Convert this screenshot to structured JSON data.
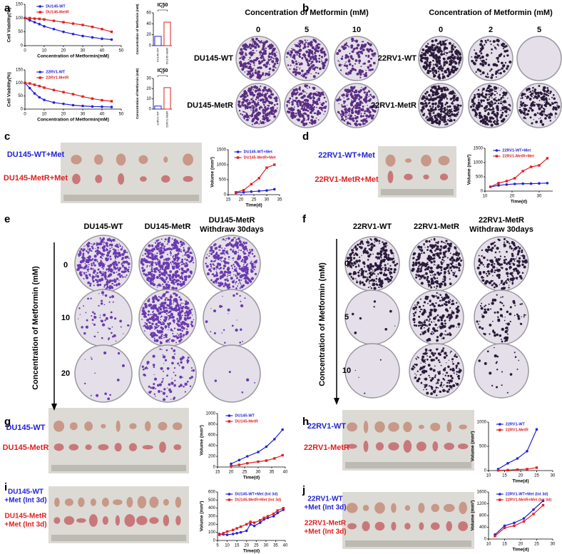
{
  "panels": {
    "letters": [
      "a",
      "b",
      "c",
      "d",
      "e",
      "f",
      "g",
      "h",
      "i",
      "j"
    ],
    "b": {
      "left_title": "Concentration of Metformin (mM)",
      "left_doses": [
        "0",
        "5",
        "10"
      ],
      "right_title": "Concentration of Metformin (mM)",
      "right_doses": [
        "0",
        "2",
        "5"
      ],
      "rows": [
        "DU145-WT",
        "DU145-MetR",
        "22RV1-WT",
        "22RV1-MetR"
      ]
    },
    "c": {
      "rows": [
        "DU145-WT+Met",
        "DU145-MetR+Met"
      ]
    },
    "d": {
      "rows": [
        "22RV1-WT+Met",
        "22RV1-MetR+Met"
      ]
    },
    "e": {
      "columns": [
        "DU145-WT",
        "DU145-MetR"
      ],
      "column3": [
        "DU145-MetR",
        "Withdraw 30days"
      ],
      "y_label": "Concentration of Metformin (mM)",
      "doses": [
        "0",
        "10",
        "20"
      ]
    },
    "f": {
      "columns": [
        "22RV1-WT",
        "22RV1-MetR"
      ],
      "column3": [
        "22RV1-MetR",
        "Withdraw 30days"
      ],
      "y_label": "Concentration of Metformin (mM)",
      "doses": [
        "0",
        "5",
        "10"
      ]
    },
    "g": {
      "rows": [
        "DU145-WT",
        "DU145-MetR"
      ]
    },
    "h": {
      "rows": [
        "22RV1-WT",
        "22RV1-MetR"
      ]
    },
    "i": {
      "rows": [
        "DU145-WT",
        "+Met (Int 3d)",
        "DU145-MetR",
        "+Met (Int 3d)"
      ]
    },
    "j": {
      "rows": [
        "22RV1-WT",
        "+Met (Int 3d)",
        "22RV1-MetR",
        "+Met (Int 3d)"
      ]
    }
  },
  "charts": [
    {
      "type": "line",
      "xlabel": "Concentration of Metformin(mM)",
      "ylabel": "Cell Viability(%)",
      "x": [
        0,
        2.5,
        5,
        7.5,
        10,
        15,
        20,
        25,
        30,
        35,
        40,
        45
      ],
      "xlim": [
        0,
        50
      ],
      "xticks": [
        0,
        10,
        20,
        30,
        40,
        50
      ],
      "ylim": [
        0,
        150
      ],
      "yticks": [
        0,
        50,
        100,
        150
      ],
      "series": [
        {
          "name": "DU145-WT",
          "color": "#2323d6",
          "values": [
            100,
            92,
            85,
            78,
            70,
            60,
            50,
            42,
            35,
            30,
            25,
            22
          ]
        },
        {
          "name": "DU145-MetR",
          "color": "#e02020",
          "values": [
            100,
            100,
            98,
            97,
            95,
            90,
            85,
            80,
            75,
            68,
            60,
            50
          ]
        }
      ]
    },
    {
      "type": "bar",
      "title": "IC50",
      "ylabel": "Concentration of Metformin (mM)",
      "categories": [
        "DU145-WT",
        "DU145-MetR"
      ],
      "values": [
        17,
        43
      ],
      "colors": [
        "#2323d6",
        "#e02020"
      ],
      "ylim": [
        0,
        60
      ],
      "yticks": [
        0,
        20,
        40,
        60
      ],
      "significance": "**"
    },
    {
      "type": "line",
      "xlabel": "Concentration of Metformin(mM)",
      "ylabel": "Cell Viability(%)",
      "x": [
        0,
        2.5,
        5,
        7.5,
        10,
        15,
        20,
        25,
        30,
        35,
        40,
        45
      ],
      "xlim": [
        0,
        50
      ],
      "xticks": [
        0,
        10,
        20,
        30,
        40,
        50
      ],
      "ylim": [
        0,
        150
      ],
      "yticks": [
        0,
        50,
        100,
        150
      ],
      "series": [
        {
          "name": "22RV1-WT",
          "color": "#2323d6",
          "values": [
            100,
            80,
            60,
            45,
            35,
            25,
            20,
            15,
            12,
            10,
            9,
            8
          ]
        },
        {
          "name": "22RV1-MetR",
          "color": "#e02020",
          "values": [
            100,
            98,
            93,
            88,
            82,
            73,
            65,
            57,
            48,
            40,
            34,
            30
          ]
        }
      ]
    },
    {
      "type": "bar",
      "title": "IC50",
      "ylabel": "Concentration of Metformin (mM)",
      "categories": [
        "22RV1-WT",
        "22RV1-MetR"
      ],
      "values": [
        3,
        21
      ],
      "colors": [
        "#2323d6",
        "#e02020"
      ],
      "ylim": [
        0,
        30
      ],
      "yticks": [
        0,
        10,
        20,
        30
      ],
      "significance": "**"
    },
    {
      "type": "line",
      "xlabel": "Time(d)",
      "ylabel": "Volume (mm³)",
      "x": [
        18,
        21,
        24,
        27,
        30,
        33
      ],
      "xlim": [
        15,
        35
      ],
      "xticks": [
        15,
        20,
        25,
        30,
        35
      ],
      "ylim": [
        0,
        1500
      ],
      "yticks": [
        0,
        500,
        1000,
        1500
      ],
      "series": [
        {
          "name": "DU145-WT+Met",
          "color": "#2323d6",
          "values": [
            60,
            80,
            100,
            120,
            140,
            180
          ]
        },
        {
          "name": "DU145-MetR+Met",
          "color": "#e02020",
          "values": [
            80,
            150,
            350,
            550,
            900,
            1000
          ]
        }
      ]
    },
    {
      "type": "line",
      "xlabel": "Time(d)",
      "ylabel": "Volume (mm³)",
      "x": [
        12,
        15,
        18,
        21,
        24,
        27,
        30,
        33
      ],
      "xlim": [
        10,
        35
      ],
      "xticks": [
        10,
        20,
        30
      ],
      "ylim": [
        0,
        1500
      ],
      "yticks": [
        0,
        500,
        1000,
        1500
      ],
      "series": [
        {
          "name": "22RV1-WT+Met",
          "color": "#2323d6",
          "values": [
            150,
            200,
            230,
            250,
            260,
            260,
            270,
            280
          ]
        },
        {
          "name": "22RV1-MetR+Met",
          "color": "#e02020",
          "values": [
            150,
            280,
            350,
            450,
            700,
            850,
            900,
            1150
          ]
        }
      ]
    },
    {
      "type": "line",
      "xlabel": "Time(d)",
      "ylabel": "Volume (mm³)",
      "x": [
        20,
        23,
        26,
        30,
        33,
        36,
        39
      ],
      "xlim": [
        15,
        40
      ],
      "xticks": [
        15,
        20,
        25,
        30,
        35,
        40
      ],
      "ylim": [
        0,
        1000
      ],
      "yticks": [
        0,
        200,
        400,
        600,
        800,
        1000
      ],
      "series": [
        {
          "name": "DU145-WT",
          "color": "#2323d6",
          "values": [
            60,
            130,
            200,
            280,
            380,
            520,
            700
          ]
        },
        {
          "name": "DU145-MetR",
          "color": "#e02020",
          "values": [
            20,
            40,
            70,
            100,
            120,
            160,
            220
          ]
        }
      ]
    },
    {
      "type": "line",
      "xlabel": "Time(d)",
      "ylabel": "Volume (mm³)",
      "x": [
        13,
        16,
        19,
        22,
        25
      ],
      "xlim": [
        10,
        30
      ],
      "xticks": [
        10,
        15,
        20,
        25,
        30
      ],
      "ylim": [
        0,
        1000
      ],
      "yticks": [
        0,
        500,
        1000
      ],
      "series": [
        {
          "name": "22RV1-WT",
          "color": "#2323d6",
          "values": [
            30,
            150,
            250,
            400,
            850
          ]
        },
        {
          "name": "22RV1-MetR",
          "color": "#e02020",
          "values": [
            5,
            10,
            20,
            30,
            60
          ]
        }
      ]
    },
    {
      "type": "line",
      "xlabel": "Time(d)",
      "ylabel": "Volume (mm³)",
      "x": [
        6,
        8,
        10,
        13,
        15,
        17,
        20,
        22,
        24,
        27,
        29,
        31,
        34,
        36,
        39
      ],
      "xlim": [
        5,
        40
      ],
      "xticks": [
        5,
        10,
        15,
        20,
        25,
        30,
        35,
        40
      ],
      "ylim": [
        0,
        600
      ],
      "yticks": [
        0,
        100,
        200,
        300,
        400,
        500,
        600
      ],
      "series": [
        {
          "name": "DU145-WT+Met (Int 3d)",
          "color": "#2323d6",
          "values": [
            80,
            75,
            70,
            80,
            90,
            100,
            120,
            200,
            180,
            220,
            260,
            280,
            300,
            340,
            380
          ]
        },
        {
          "name": "DU145-MetR+Met (Int 3d)",
          "color": "#e02020",
          "values": [
            70,
            90,
            110,
            130,
            150,
            170,
            200,
            230,
            220,
            250,
            280,
            300,
            330,
            370,
            400
          ]
        }
      ]
    },
    {
      "type": "line",
      "xlabel": "Time(d)",
      "ylabel": "Volume (mm³)",
      "x": [
        12,
        15,
        18,
        21,
        24,
        27
      ],
      "xlim": [
        10,
        30
      ],
      "xticks": [
        10,
        15,
        20,
        25,
        30
      ],
      "ylim": [
        0,
        1600
      ],
      "yticks": [
        0,
        400,
        800,
        1200,
        1600
      ],
      "series": [
        {
          "name": "22RV1-WT+Met (Int 3d)",
          "color": "#2323d6",
          "values": [
            150,
            450,
            550,
            700,
            1000,
            1300
          ]
        },
        {
          "name": "22RV1-MetR+Met (Int 3d)",
          "color": "#e02020",
          "values": [
            100,
            380,
            450,
            600,
            850,
            1150
          ]
        }
      ]
    }
  ]
}
